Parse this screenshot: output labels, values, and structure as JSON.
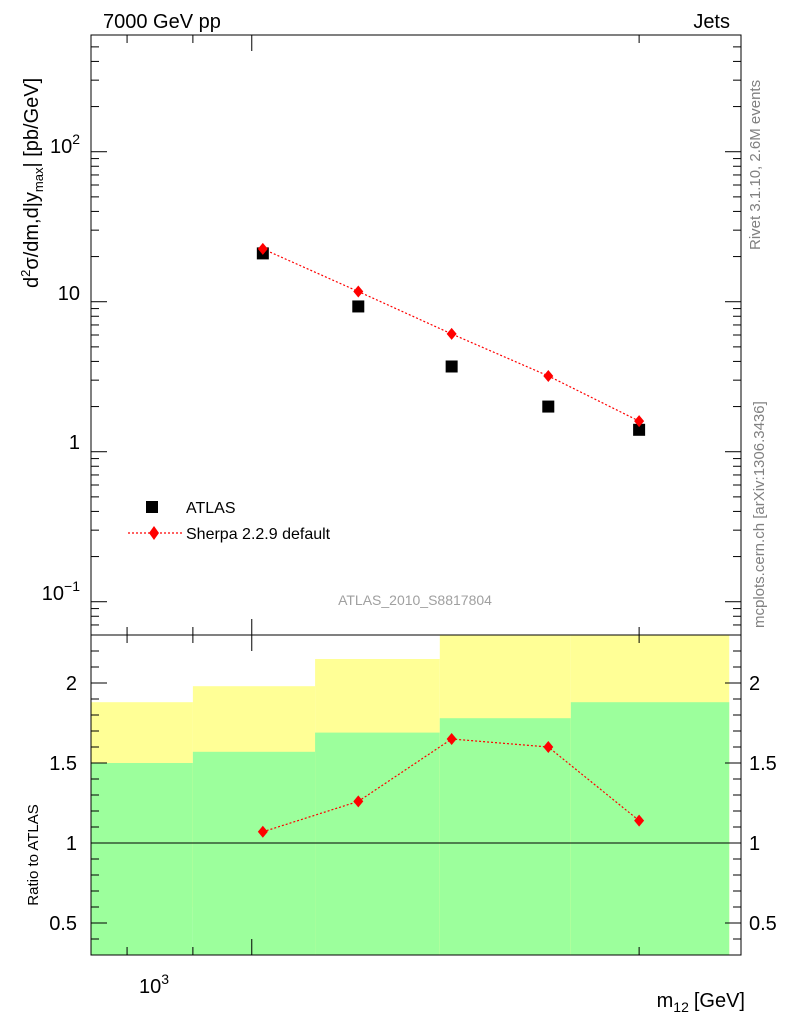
{
  "header": {
    "left": "7000 GeV pp",
    "right": "Jets"
  },
  "side_labels": {
    "rivet": "Rivet 3.1.10,  2.6M events",
    "mcplots": "mcplots.cern.ch [arXiv:1306.3436]"
  },
  "watermark": "ATLAS_2010_S8817804",
  "axes": {
    "x_title": "m",
    "x_title_sub": "12",
    "x_title_unit": "[GeV]",
    "x_tick_label": "10",
    "x_tick_exp": "3",
    "y_main_title": {
      "d": "d",
      "sq": "2",
      "mid": "σ/dm,d|y",
      "sub": "max",
      "end": "| [pb/GeV]"
    },
    "y_main_ticks": {
      "p2_base": "10",
      "p2_exp": "2",
      "ten": "10",
      "one": "1",
      "m1_base": "10",
      "m1_exp": "−1"
    },
    "y_ratio_title": "Ratio to ATLAS",
    "y_ratio_ticks": [
      "2",
      "1.5",
      "1",
      "0.5"
    ]
  },
  "legend": {
    "data_label": "ATLAS",
    "mc_label": "Sherpa 2.2.9 default"
  },
  "colors": {
    "data": "#000000",
    "mc": "#ff0000",
    "band_inner": "#9cff9c",
    "band_outer": "#ffff96"
  },
  "chart_data": [
    {
      "type": "scatter",
      "panel": "main",
      "x_scale": "log",
      "y_scale": "log",
      "xlabel": "m12 [GeV]",
      "ylabel": "d2σ/dm,d|ymax| [pb/GeV]",
      "xlim": [
        750,
        2400
      ],
      "ylim": [
        0.06,
        600
      ],
      "bins": [
        [
          750,
          1120
        ],
        [
          1120,
          1310
        ],
        [
          1310,
          1560
        ],
        [
          1560,
          1850
        ],
        [
          1850,
          2150
        ]
      ],
      "series": [
        {
          "name": "ATLAS",
          "x": [
            1020,
            1210,
            1430,
            1700,
            2000
          ],
          "y": [
            21,
            9.3,
            3.7,
            2.0,
            1.4
          ]
        },
        {
          "name": "Sherpa 2.2.9 default",
          "x": [
            1020,
            1210,
            1430,
            1700,
            2000
          ],
          "y": [
            22.5,
            11.7,
            6.1,
            3.2,
            1.6
          ]
        }
      ]
    },
    {
      "type": "line",
      "panel": "ratio",
      "x_scale": "log",
      "ylabel": "Ratio to ATLAS",
      "xlim": [
        750,
        2400
      ],
      "ylim": [
        0.3,
        2.3
      ],
      "reference_line": 1,
      "bands": [
        {
          "x0": 750,
          "x1": 900,
          "inner": [
            0.0,
            1.5
          ],
          "outer": [
            0.6,
            1.88
          ]
        },
        {
          "x0": 900,
          "x1": 1120,
          "inner": [
            0.0,
            1.57
          ],
          "outer": [
            0.52,
            1.98
          ]
        },
        {
          "x0": 1120,
          "x1": 1400,
          "inner": [
            0.0,
            1.69
          ],
          "outer": [
            0.0,
            2.15
          ]
        },
        {
          "x0": 1400,
          "x1": 1770,
          "inner": [
            0.0,
            1.78
          ],
          "outer": [
            0.0,
            2.3
          ]
        },
        {
          "x0": 1770,
          "x1": 2350,
          "inner": [
            0.0,
            1.88
          ],
          "outer": [
            0.0,
            2.33
          ]
        }
      ],
      "series": [
        {
          "name": "Sherpa 2.2.9 default",
          "x": [
            1020,
            1210,
            1430,
            1700,
            2000
          ],
          "y": [
            1.07,
            1.26,
            1.65,
            1.6,
            1.14
          ]
        }
      ]
    }
  ]
}
